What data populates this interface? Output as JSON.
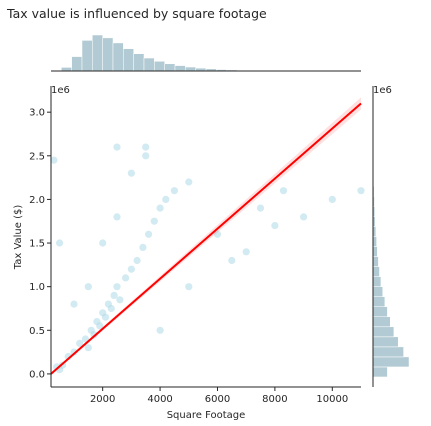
{
  "chart_data": {
    "type": "scatter",
    "title": "Tax value is influenced by square footage",
    "xlabel": "Square Footage",
    "ylabel": "Tax Value ($)",
    "y_offset_label": "1e6",
    "marginal_y_offset_label": "1e6",
    "xlim": [
      200,
      11000
    ],
    "ylim": [
      -0.15,
      3.3
    ],
    "x_ticks": [
      2000,
      4000,
      6000,
      8000,
      10000
    ],
    "x_tick_labels": [
      "2000",
      "4000",
      "6000",
      "8000",
      "10000"
    ],
    "y_ticks": [
      0.0,
      0.5,
      1.0,
      1.5,
      2.0,
      2.5,
      3.0
    ],
    "y_tick_labels": [
      "0.0",
      "0.5",
      "1.0",
      "1.5",
      "2.0",
      "2.5",
      "3.0"
    ],
    "grid": false,
    "legend": "none",
    "series": [
      {
        "kind": "scatter",
        "color": "#add8e6",
        "points": [
          [
            1000,
            0.25
          ],
          [
            1200,
            0.35
          ],
          [
            1400,
            0.4
          ],
          [
            1500,
            0.3
          ],
          [
            1600,
            0.5
          ],
          [
            1700,
            0.45
          ],
          [
            1800,
            0.6
          ],
          [
            1900,
            0.55
          ],
          [
            2000,
            0.7
          ],
          [
            2100,
            0.65
          ],
          [
            2200,
            0.8
          ],
          [
            2300,
            0.75
          ],
          [
            2400,
            0.9
          ],
          [
            2500,
            1.0
          ],
          [
            2600,
            0.85
          ],
          [
            2800,
            1.1
          ],
          [
            3000,
            1.2
          ],
          [
            3200,
            1.3
          ],
          [
            3400,
            1.45
          ],
          [
            3600,
            1.6
          ],
          [
            3800,
            1.75
          ],
          [
            4000,
            1.9
          ],
          [
            4200,
            2.0
          ],
          [
            4500,
            2.1
          ],
          [
            5000,
            2.2
          ],
          [
            2000,
            1.5
          ],
          [
            2500,
            1.8
          ],
          [
            3000,
            2.3
          ],
          [
            3500,
            2.5
          ],
          [
            1500,
            1.0
          ],
          [
            1000,
            0.8
          ],
          [
            800,
            0.2
          ],
          [
            600,
            0.1
          ],
          [
            500,
            0.05
          ],
          [
            400,
            0.08
          ],
          [
            4000,
            0.5
          ],
          [
            5000,
            1.0
          ],
          [
            6000,
            1.6
          ],
          [
            6500,
            1.3
          ],
          [
            7000,
            1.4
          ],
          [
            7500,
            1.9
          ],
          [
            8000,
            1.7
          ],
          [
            8300,
            2.1
          ],
          [
            9000,
            1.8
          ],
          [
            10000,
            2.0
          ],
          [
            11000,
            2.1
          ],
          [
            300,
            2.45
          ],
          [
            500,
            1.5
          ],
          [
            2500,
            2.6
          ],
          [
            3500,
            2.6
          ]
        ]
      },
      {
        "kind": "regression-line",
        "color": "#ff0000",
        "x": [
          200,
          11000
        ],
        "y": [
          0.0,
          3.1
        ]
      }
    ],
    "marginal_x_hist": {
      "color": "#7fa7b5",
      "range": [
        200,
        11000
      ],
      "counts": [
        2,
        10,
        40,
        85,
        100,
        92,
        78,
        62,
        48,
        36,
        27,
        20,
        15,
        11,
        8,
        6,
        4,
        3,
        2,
        2,
        1,
        1,
        1,
        1,
        0,
        0,
        0,
        0,
        0,
        0
      ]
    },
    "marginal_y_hist": {
      "color": "#7fa7b5",
      "range": [
        -0.15,
        3.3
      ],
      "counts": [
        0,
        40,
        100,
        85,
        70,
        58,
        48,
        40,
        33,
        27,
        22,
        18,
        15,
        12,
        10,
        8,
        6,
        5,
        4,
        3,
        2,
        2,
        1,
        1,
        1,
        1,
        0,
        0,
        0,
        0
      ]
    }
  }
}
